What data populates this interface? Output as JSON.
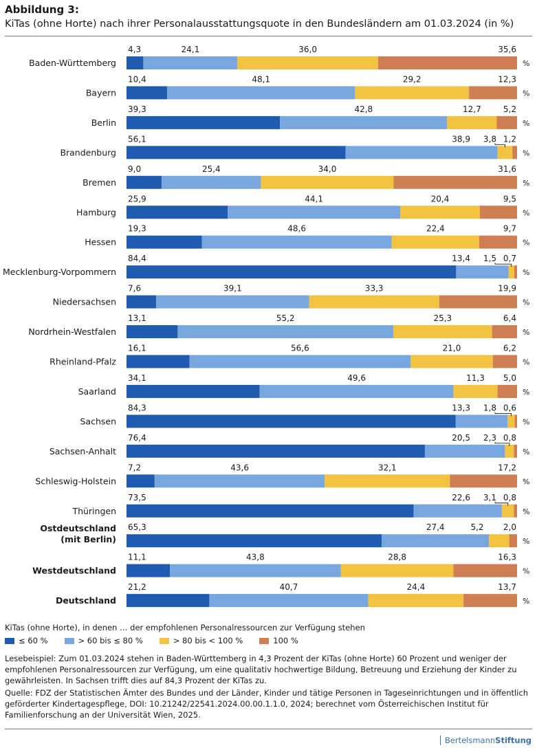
{
  "figure": {
    "label": "Abbildung 3:",
    "title": "KiTas (ohne Horte) nach ihrer Personalausstattungsquote in den Bundesländern am 01.03.2024 (in %)"
  },
  "chart_data": {
    "type": "bar",
    "orientation": "horizontal",
    "stacked": true,
    "unit": "%",
    "xlim": [
      0,
      100
    ],
    "grid": false,
    "legend_position": "bottom",
    "legend_title": "KiTas (ohne Horte), in denen … der empfohlenen Personalressourcen zur Verfügung stehen",
    "series": [
      {
        "name": "≤ 60 %",
        "color": "#1f5bb0"
      },
      {
        "name": "> 60 bis ≤ 80 %",
        "color": "#78a7e0"
      },
      {
        "name": "> 80 bis < 100 %",
        "color": "#f2c341"
      },
      {
        "name": "100 %",
        "color": "#cf7d52"
      }
    ],
    "rows": [
      {
        "label": "Baden-Württemberg",
        "values": [
          "4,3",
          "24,1",
          "36,0",
          "35,6"
        ],
        "bold": false
      },
      {
        "label": "Bayern",
        "values": [
          "10,4",
          "48,1",
          "29,2",
          "12,3"
        ],
        "bold": false
      },
      {
        "label": "Berlin",
        "values": [
          "39,3",
          "42,8",
          "12,7",
          "5,2"
        ],
        "bold": false
      },
      {
        "label": "Brandenburg",
        "values": [
          "56,1",
          "38,9",
          "3,8",
          "1,2"
        ],
        "bold": false
      },
      {
        "label": "Bremen",
        "values": [
          "9,0",
          "25,4",
          "34,0",
          "31,6"
        ],
        "bold": false
      },
      {
        "label": "Hamburg",
        "values": [
          "25,9",
          "44,1",
          "20,4",
          "9,5"
        ],
        "bold": false
      },
      {
        "label": "Hessen",
        "values": [
          "19,3",
          "48,6",
          "22,4",
          "9,7"
        ],
        "bold": false
      },
      {
        "label": "Mecklenburg-Vorpommern",
        "values": [
          "84,4",
          "13,4",
          "1,5",
          "0,7"
        ],
        "bold": false
      },
      {
        "label": "Niedersachsen",
        "values": [
          "7,6",
          "39,1",
          "33,3",
          "19,9"
        ],
        "bold": false
      },
      {
        "label": "Nordrhein-Westfalen",
        "values": [
          "13,1",
          "55,2",
          "25,3",
          "6,4"
        ],
        "bold": false
      },
      {
        "label": "Rheinland-Pfalz",
        "values": [
          "16,1",
          "56,6",
          "21,0",
          "6,2"
        ],
        "bold": false
      },
      {
        "label": "Saarland",
        "values": [
          "34,1",
          "49,6",
          "11,3",
          "5,0"
        ],
        "bold": false
      },
      {
        "label": "Sachsen",
        "values": [
          "84,3",
          "13,3",
          "1,8",
          "0,6"
        ],
        "bold": false
      },
      {
        "label": "Sachsen-Anhalt",
        "values": [
          "76,4",
          "20,5",
          "2,3",
          "0,8"
        ],
        "bold": false
      },
      {
        "label": "Schleswig-Holstein",
        "values": [
          "7,2",
          "43,6",
          "32,1",
          "17,2"
        ],
        "bold": false
      },
      {
        "label": "Thüringen",
        "values": [
          "73,5",
          "22,6",
          "3,1",
          "0,8"
        ],
        "bold": false
      },
      {
        "label": "Ostdeutschland (mit Berlin)",
        "values": [
          "65,3",
          "27,4",
          "5,2",
          "2,0"
        ],
        "bold": true
      },
      {
        "label": "Westdeutschland",
        "values": [
          "11,1",
          "43,8",
          "28,8",
          "16,3"
        ],
        "bold": true
      },
      {
        "label": "Deutschland",
        "values": [
          "21,2",
          "40,7",
          "24,4",
          "13,7"
        ],
        "bold": true
      }
    ]
  },
  "reading_example": "Lesebeispiel: Zum 01.03.2024 stehen in Baden-Württemberg in 4,3 Prozent der KiTas (ohne Horte) 60 Prozent und weniger der empfohlenen Personalressourcen zur Verfügung, um eine qualitativ hochwertige Bildung, Betreuung und Erziehung der Kinder zu gewährleisten. In Sachsen trifft dies auf 84,3 Prozent der KiTas zu.",
  "source": "Quelle: FDZ der Statistischen Ämter des Bundes und der Länder, Kinder und tätige Personen in Tageseinrichtungen und in öffentlich geförderter Kindertagespflege, DOI: 10.21242/22541.2024.00.00.1.1.0, 2024; berechnet vom Österreichischen Institut für Familienforschung an der Universität Wien, 2025.",
  "brand": {
    "part1": "Bertelsmann",
    "part2": "Stiftung"
  }
}
